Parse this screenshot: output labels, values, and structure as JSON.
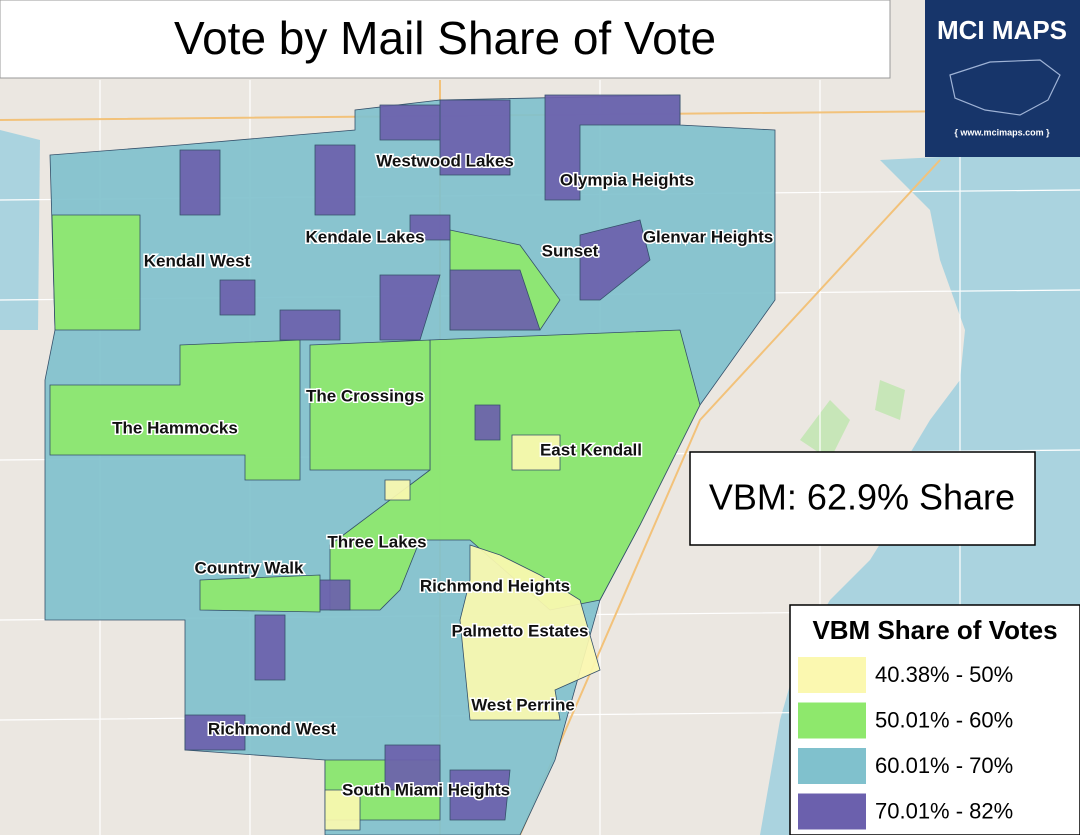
{
  "title": "Vote by Mail Share of Vote",
  "logo": {
    "name": "MCI MAPS",
    "url": "{ www.mcimaps.com }"
  },
  "places": [
    "Westwood Lakes",
    "Olympia Heights",
    "Kendale Lakes",
    "Glenvar Heights",
    "Sunset",
    "Kendall West",
    "The Crossings",
    "The Hammocks",
    "East Kendall",
    "Three Lakes",
    "Country Walk",
    "Richmond Heights",
    "Palmetto Estates",
    "West Perrine",
    "Richmond West",
    "South Miami Heights"
  ],
  "summary": "VBM: 62.9% Share",
  "legend": {
    "title": "VBM Share of Votes",
    "items": [
      {
        "label": "40.38% - 50%",
        "color": "#fbf8b0"
      },
      {
        "label": "50.01% - 60%",
        "color": "#8ee86c"
      },
      {
        "label": "60.01% - 70%",
        "color": "#80c1cd"
      },
      {
        "label": "70.01% - 82%",
        "color": "#6b60ad"
      }
    ]
  }
}
